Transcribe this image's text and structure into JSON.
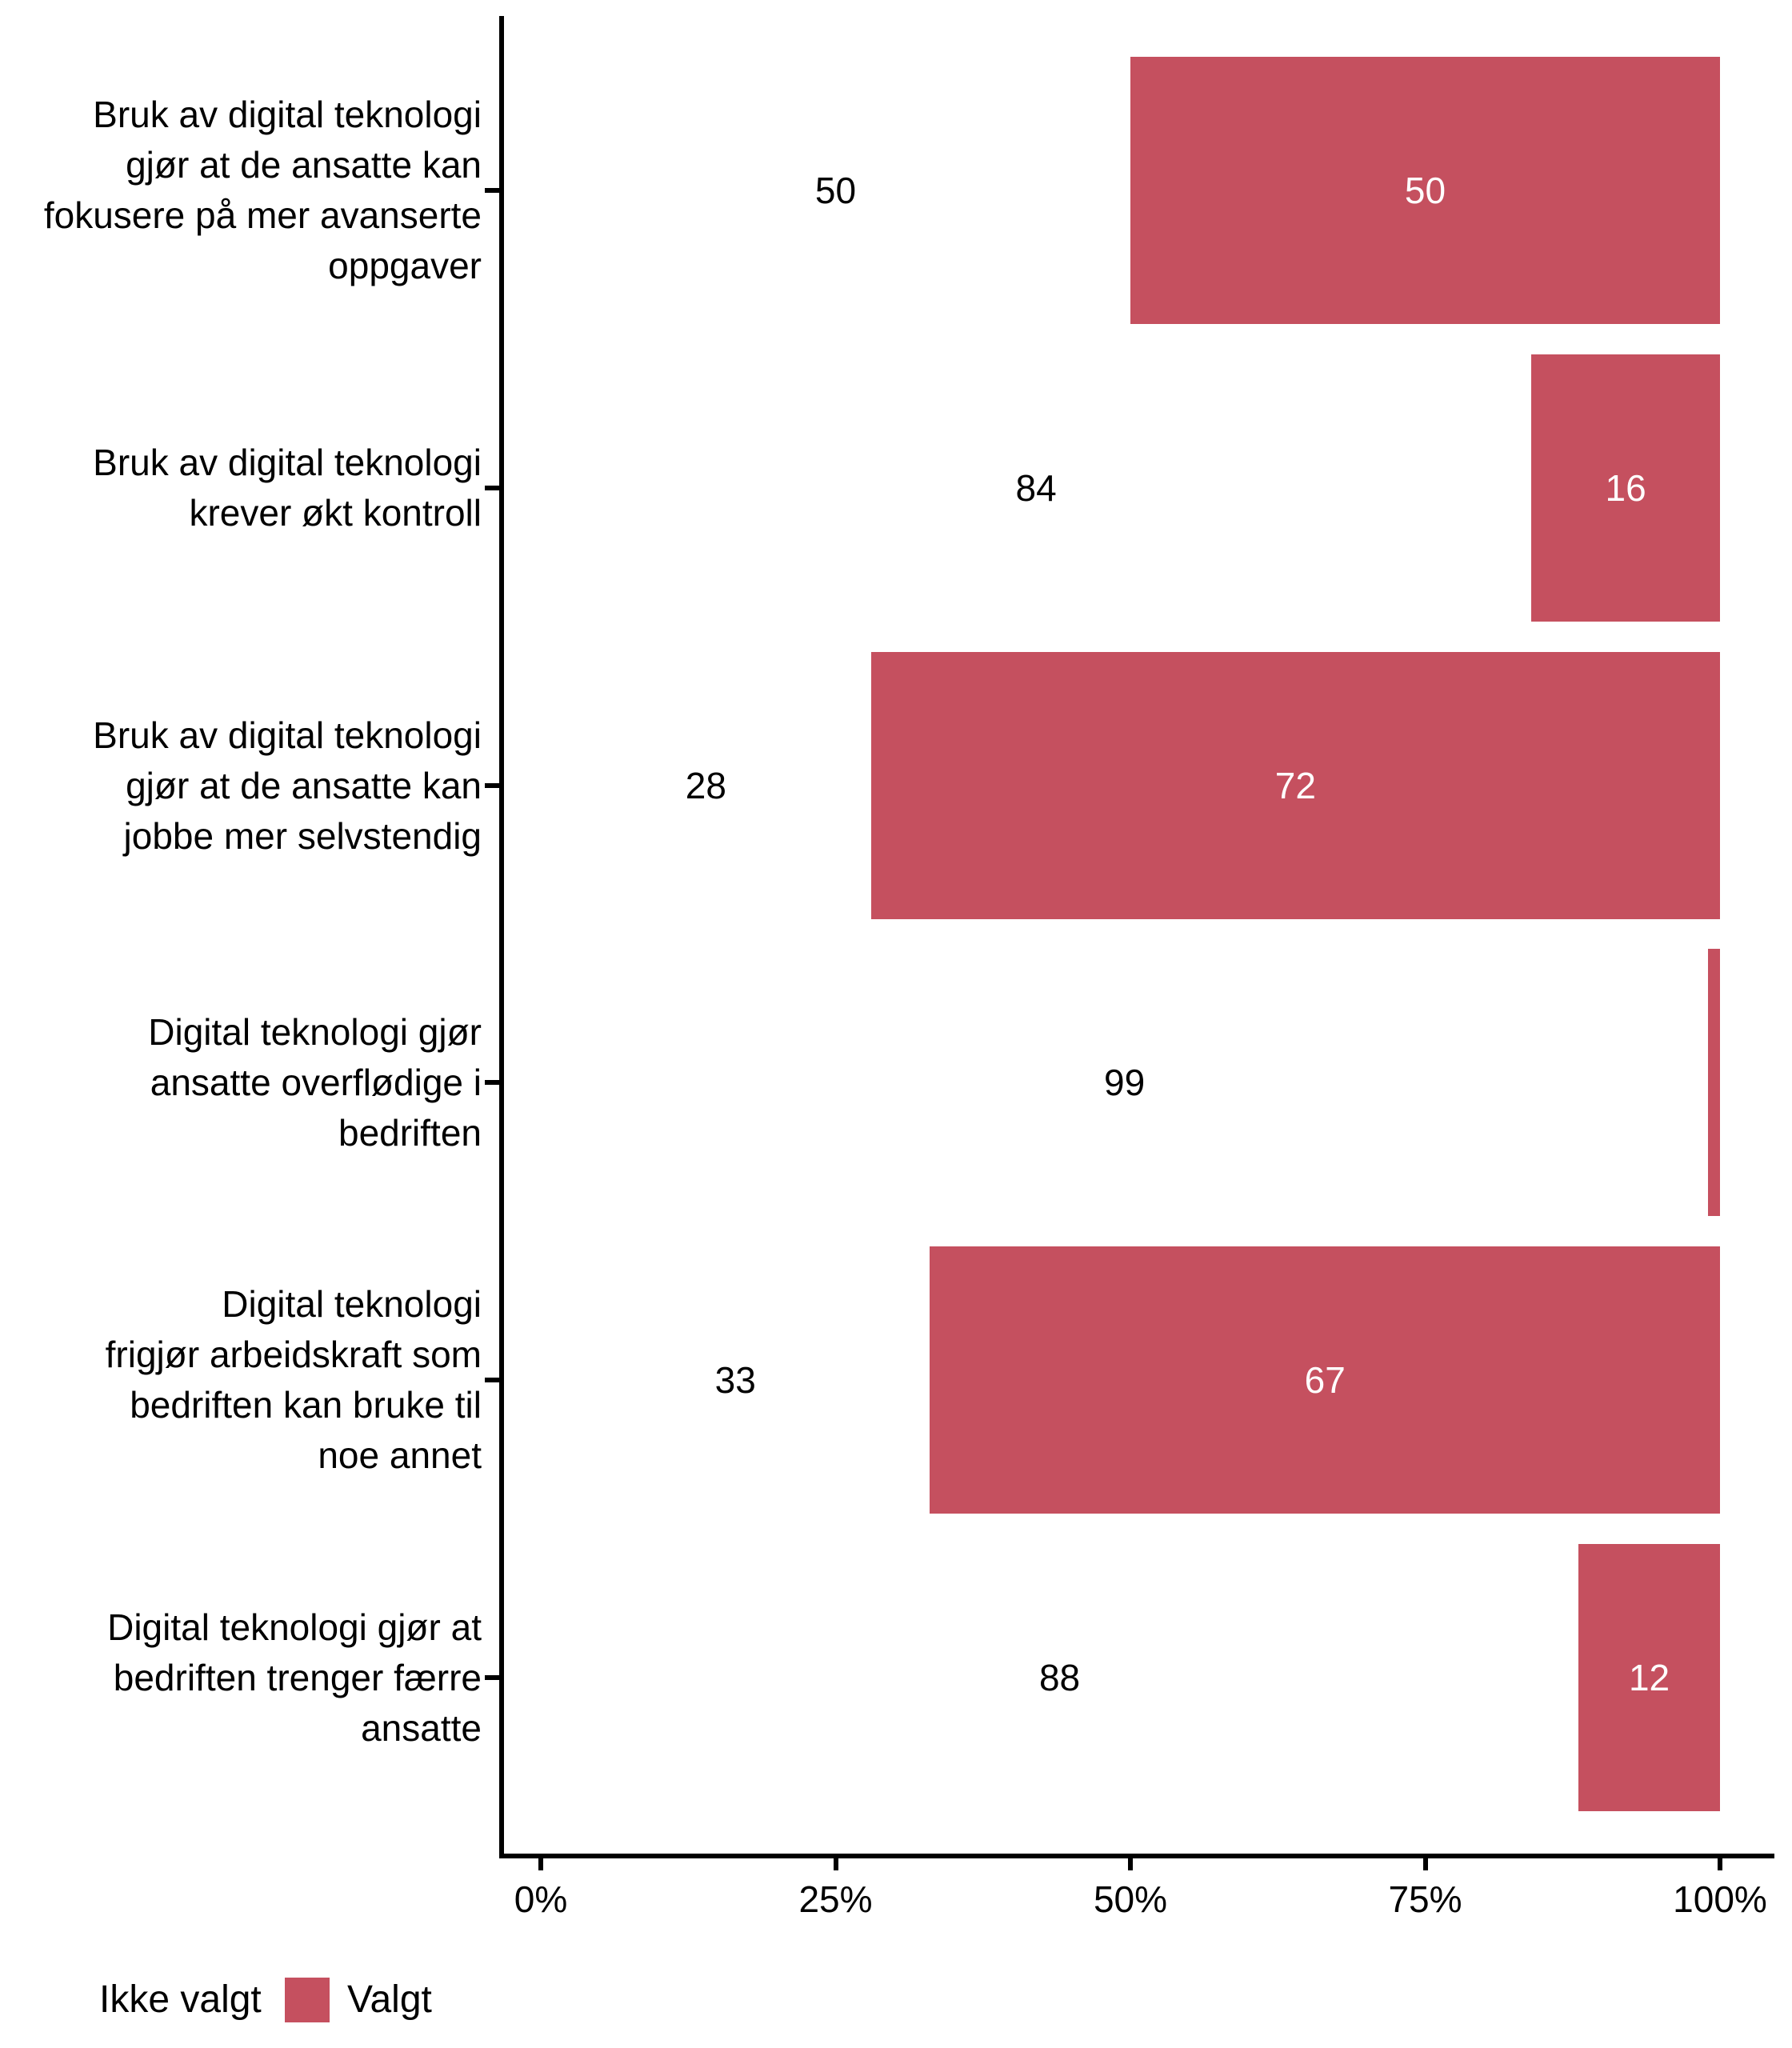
{
  "chart_data": {
    "type": "bar",
    "orientation": "horizontal",
    "stacked": true,
    "unit": "percent",
    "title": "",
    "xlabel": "",
    "ylabel": "",
    "xlim": [
      0,
      100
    ],
    "grid": false,
    "legend_position": "bottom-left",
    "categories": [
      "Bruk av digital teknologi gjør at de ansatte kan fokusere på mer avanserte oppgaver",
      "Bruk av digital teknologi krever økt kontroll",
      "Bruk av digital teknologi gjør at de ansatte kan jobbe mer selvstendig",
      "Digital teknologi gjør ansatte overflødige i bedriften",
      "Digital teknologi frigjør arbeidskraft som bedriften kan bruke til noe annet",
      "Digital teknologi gjør at bedriften trenger færre ansatte"
    ],
    "category_label_lines": [
      [
        "Bruk av digital teknologi",
        "gjør at de ansatte kan",
        "fokusere på mer avanserte",
        "oppgaver"
      ],
      [
        "Bruk av digital teknologi",
        "krever økt kontroll"
      ],
      [
        "Bruk av digital teknologi",
        "gjør at de ansatte kan",
        "jobbe mer selvstendig"
      ],
      [
        "Digital teknologi gjør",
        "ansatte overflødige i",
        "bedriften"
      ],
      [
        "Digital teknologi",
        "frigjør arbeidskraft som",
        "bedriften kan bruke til",
        "noe annet"
      ],
      [
        "Digital teknologi gjør at",
        "bedriften trenger færre",
        "ansatte"
      ]
    ],
    "series": [
      {
        "name": "Ikke valgt",
        "color": "#FFFFFF",
        "values": [
          50,
          84,
          28,
          99,
          33,
          88
        ]
      },
      {
        "name": "Valgt",
        "color": "#C5505F",
        "values": [
          50,
          16,
          72,
          1,
          67,
          12
        ]
      }
    ],
    "value_labels": {
      "ikke_valgt": [
        "50",
        "84",
        "28",
        "99",
        "33",
        "88"
      ],
      "valgt": [
        "50",
        "16",
        "72",
        "",
        "67",
        "12"
      ]
    },
    "x_ticks": [
      {
        "label": "0%",
        "value": 0
      },
      {
        "label": "25%",
        "value": 25
      },
      {
        "label": "50%",
        "value": 50
      },
      {
        "label": "75%",
        "value": 75
      },
      {
        "label": "100%",
        "value": 100
      }
    ]
  },
  "legend": {
    "items": [
      {
        "label": "Ikke valgt",
        "color": "#FFFFFF"
      },
      {
        "label": "Valgt",
        "color": "#C5505F"
      }
    ]
  },
  "colors": {
    "valgt": "#C5505F",
    "ikke_valgt": "#FFFFFF",
    "axis": "#000000",
    "text": "#000000"
  }
}
